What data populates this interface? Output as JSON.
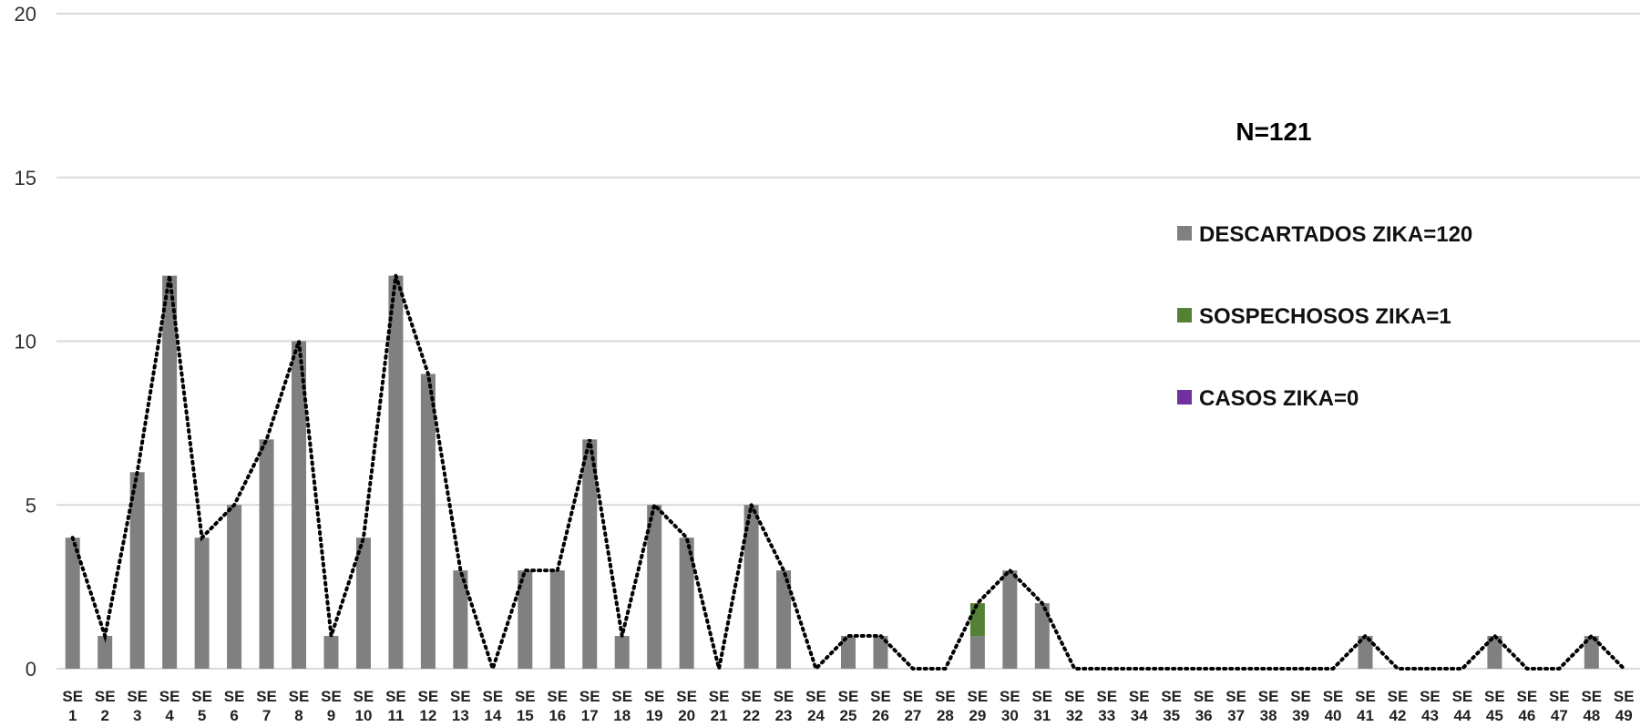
{
  "chart_data": {
    "type": "bar",
    "stacked": true,
    "categories": [
      "SE 1",
      "SE 2",
      "SE 3",
      "SE 4",
      "SE 5",
      "SE 6",
      "SE 7",
      "SE 8",
      "SE 9",
      "SE 10",
      "SE 11",
      "SE 12",
      "SE 13",
      "SE 14",
      "SE 15",
      "SE 16",
      "SE 17",
      "SE 18",
      "SE 19",
      "SE 20",
      "SE 21",
      "SE 22",
      "SE 23",
      "SE 24",
      "SE 25",
      "SE 26",
      "SE 27",
      "SE 28",
      "SE 29",
      "SE 30",
      "SE 31",
      "SE 32",
      "SE 33",
      "SE 34",
      "SE 35",
      "SE 36",
      "SE 37",
      "SE 38",
      "SE 39",
      "SE 40",
      "SE 41",
      "SE 42",
      "SE 43",
      "SE 44",
      "SE 45",
      "SE 46",
      "SE 47",
      "SE 48",
      "SE 49"
    ],
    "series": [
      {
        "name": "DESCARTADOS ZIKA=120",
        "color": "#808080",
        "values": [
          4,
          1,
          6,
          12,
          4,
          5,
          7,
          10,
          1,
          4,
          12,
          9,
          3,
          0,
          3,
          3,
          7,
          1,
          5,
          4,
          0,
          5,
          3,
          0,
          1,
          1,
          0,
          0,
          1,
          3,
          2,
          0,
          0,
          0,
          0,
          0,
          0,
          0,
          0,
          0,
          1,
          0,
          0,
          0,
          1,
          0,
          0,
          1,
          0
        ]
      },
      {
        "name": "SOSPECHOSOS ZIKA=1",
        "color": "#548235",
        "values": [
          0,
          0,
          0,
          0,
          0,
          0,
          0,
          0,
          0,
          0,
          0,
          0,
          0,
          0,
          0,
          0,
          0,
          0,
          0,
          0,
          0,
          0,
          0,
          0,
          0,
          0,
          0,
          0,
          1,
          0,
          0,
          0,
          0,
          0,
          0,
          0,
          0,
          0,
          0,
          0,
          0,
          0,
          0,
          0,
          0,
          0,
          0,
          0,
          0
        ]
      },
      {
        "name": "CASOS ZIKA=0",
        "color": "#7030a0",
        "values": [
          0,
          0,
          0,
          0,
          0,
          0,
          0,
          0,
          0,
          0,
          0,
          0,
          0,
          0,
          0,
          0,
          0,
          0,
          0,
          0,
          0,
          0,
          0,
          0,
          0,
          0,
          0,
          0,
          0,
          0,
          0,
          0,
          0,
          0,
          0,
          0,
          0,
          0,
          0,
          0,
          0,
          0,
          0,
          0,
          0,
          0,
          0,
          0,
          0
        ]
      }
    ],
    "total_line": {
      "style": "dotted",
      "color": "#000000",
      "values": [
        4,
        1,
        6,
        12,
        4,
        5,
        7,
        10,
        1,
        4,
        12,
        9,
        3,
        0,
        3,
        3,
        7,
        1,
        5,
        4,
        0,
        5,
        3,
        0,
        1,
        1,
        0,
        0,
        2,
        3,
        2,
        0,
        0,
        0,
        0,
        0,
        0,
        0,
        0,
        0,
        1,
        0,
        0,
        0,
        1,
        0,
        0,
        1,
        0
      ]
    },
    "ylim": [
      0,
      20
    ],
    "yticks": [
      0,
      5,
      10,
      15,
      20
    ],
    "grid": true,
    "annotation": "N=121",
    "legend_position": "right"
  }
}
